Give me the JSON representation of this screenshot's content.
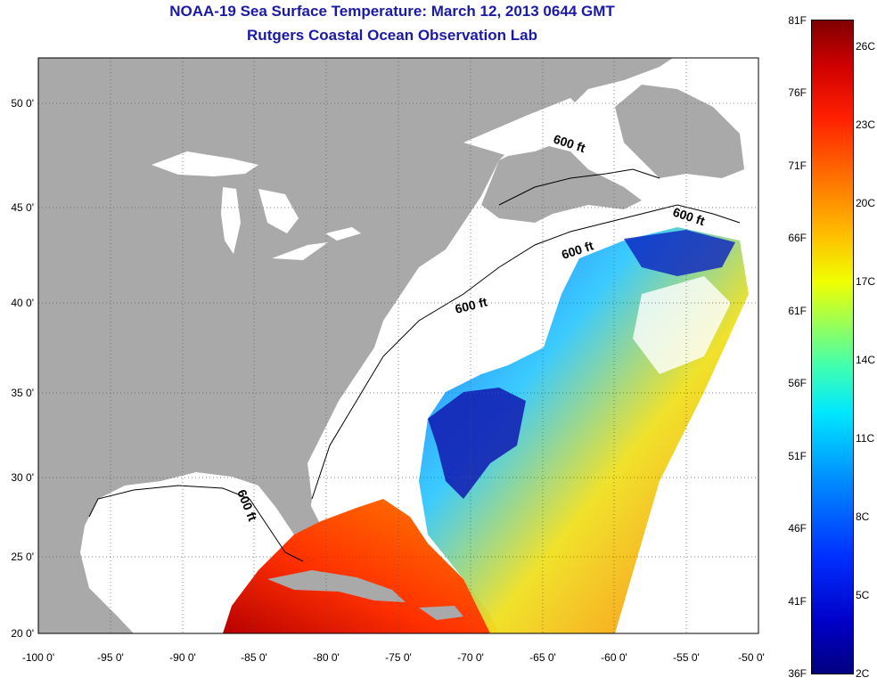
{
  "title": {
    "line1": "NOAA-19 Sea Surface Temperature:  March 12, 2013 0644 GMT",
    "line2": "Rutgers Coastal Ocean Observation Lab"
  },
  "axes": {
    "lat_labels": [
      "50 0'",
      "45 0'",
      "40 0'",
      "35 0'",
      "30 0'",
      "25 0'",
      "20 0'"
    ],
    "lon_labels": [
      "-100 0'",
      "-95 0'",
      "-90 0'",
      "-85 0'",
      "-80 0'",
      "-75 0'",
      "-70 0'",
      "-65 0'",
      "-60 0'",
      "-55 0'",
      "-50 0'"
    ]
  },
  "contour_labels": [
    "600 ft",
    "600 ft",
    "600 ft",
    "600 ft",
    "600 ft"
  ],
  "colorbar": {
    "fahrenheit": [
      "81F",
      "76F",
      "71F",
      "66F",
      "61F",
      "56F",
      "51F",
      "46F",
      "41F",
      "36F"
    ],
    "celsius": [
      "26C",
      "23C",
      "20C",
      "17C",
      "14C",
      "11C",
      "8C",
      "5C",
      "2C"
    ]
  },
  "colors": {
    "title": "#1a1aa6",
    "land": "#a9a9a9",
    "water_nodata": "#ffffff"
  }
}
